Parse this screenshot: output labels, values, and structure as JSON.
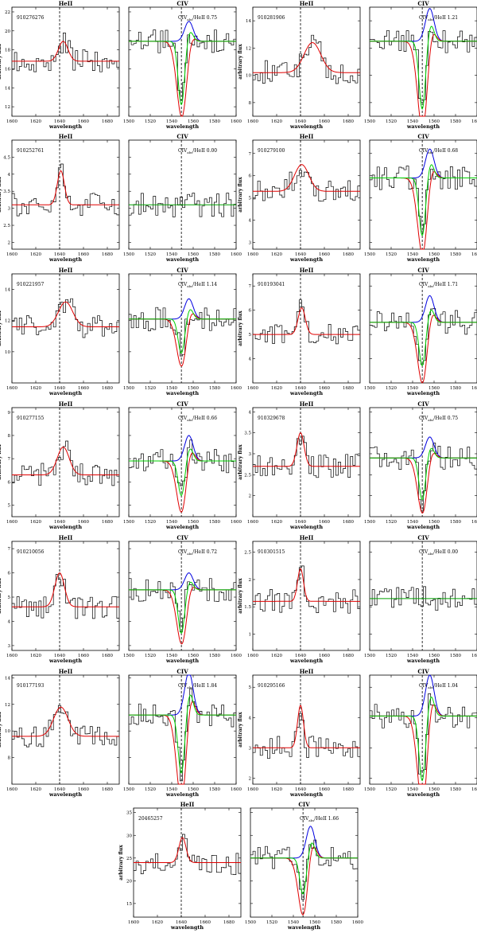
{
  "figure": {
    "ylabel": "arbitrary flux",
    "xlabel": "wavelength",
    "heii_title": "HeII",
    "civ_title": "CIV",
    "ratio_prefix": "CIV",
    "ratio_sub": "abs",
    "ratio_suffix": "/HeII",
    "colors": {
      "data": "#000000",
      "model": "#e00000",
      "emission": "#0000e0",
      "continuum": "#00a000",
      "absorption": "#00d000"
    }
  },
  "chart_data": [
    {
      "type": "line",
      "id": "910276276",
      "heii": {
        "xlim": [
          1600,
          1690
        ],
        "xticks": [
          1600,
          1620,
          1640,
          1660,
          1680
        ],
        "ylim": [
          11,
          22.5
        ],
        "yticks": [
          12,
          14,
          16,
          18,
          20,
          22
        ],
        "cont": 16.8,
        "peak": 18.9,
        "center": 1643,
        "sigma": 4
      },
      "civ": {
        "ratio": "0.75",
        "xlim": [
          1500,
          1600
        ],
        "xticks": [
          1500,
          1520,
          1540,
          1560,
          1580,
          1600
        ],
        "ylim": [
          11,
          22.5
        ],
        "cont": 18.9,
        "em_peak": 21.0,
        "abs_min": 12.2
      }
    },
    {
      "type": "line",
      "id": "910281906",
      "heii": {
        "xlim": [
          1600,
          1690
        ],
        "xticks": [
          1600,
          1620,
          1640,
          1660,
          1680
        ],
        "ylim": [
          7,
          15
        ],
        "yticks": [
          8,
          10,
          12,
          14
        ],
        "cont": 10.2,
        "peak": 12.4,
        "center": 1650,
        "sigma": 7
      },
      "civ": {
        "ratio": "1.21",
        "xlim": [
          1500,
          1600
        ],
        "xticks": [
          1500,
          1520,
          1540,
          1560,
          1580,
          1600
        ],
        "ylim": [
          7,
          15
        ],
        "cont": 12.5,
        "em_peak": 14.9,
        "abs_min": 7.5
      }
    },
    {
      "type": "line",
      "id": "910252761",
      "heii": {
        "xlim": [
          1600,
          1690
        ],
        "xticks": [
          1600,
          1620,
          1640,
          1660,
          1680
        ],
        "ylim": [
          1.8,
          5.0
        ],
        "yticks": [
          2.0,
          2.5,
          3.0,
          3.5,
          4.0,
          4.5
        ],
        "cont": 3.1,
        "peak": 4.1,
        "center": 1641,
        "sigma": 3
      },
      "civ": {
        "ratio": "0.00",
        "xlim": [
          1500,
          1600
        ],
        "xticks": [
          1500,
          1520,
          1540,
          1560,
          1580,
          1600
        ],
        "ylim": [
          1.8,
          5.0
        ],
        "cont": 3.1,
        "em_peak": 3.1,
        "abs_min": 3.1
      }
    },
    {
      "type": "line",
      "id": "910279100",
      "heii": {
        "xlim": [
          1600,
          1690
        ],
        "xticks": [
          1600,
          1620,
          1640,
          1660,
          1680
        ],
        "ylim": [
          2.7,
          7.6
        ],
        "yticks": [
          3,
          4,
          5,
          6,
          7
        ],
        "cont": 5.3,
        "peak": 6.5,
        "center": 1641,
        "sigma": 6
      },
      "civ": {
        "ratio": "0.68",
        "xlim": [
          1500,
          1600
        ],
        "xticks": [
          1500,
          1520,
          1540,
          1560,
          1580,
          1600
        ],
        "ylim": [
          2.7,
          7.6
        ],
        "cont": 5.9,
        "em_peak": 7.2,
        "abs_min": 3.3
      }
    },
    {
      "type": "line",
      "id": "910221957",
      "heii": {
        "xlim": [
          1600,
          1690
        ],
        "xticks": [
          1600,
          1620,
          1640,
          1660,
          1680
        ],
        "ylim": [
          8,
          15
        ],
        "yticks": [
          10,
          12,
          14
        ],
        "cont": 11.6,
        "peak": 13.2,
        "center": 1645,
        "sigma": 6
      },
      "civ": {
        "ratio": "1.14",
        "xlim": [
          1500,
          1600
        ],
        "xticks": [
          1500,
          1520,
          1540,
          1560,
          1580,
          1600
        ],
        "ylim": [
          8,
          15
        ],
        "cont": 12.1,
        "em_peak": 13.4,
        "abs_min": 9.9
      }
    },
    {
      "type": "line",
      "id": "910193041",
      "heii": {
        "xlim": [
          1600,
          1690
        ],
        "xticks": [
          1600,
          1620,
          1640,
          1660,
          1680
        ],
        "ylim": [
          3,
          7.5
        ],
        "yticks": [
          4,
          5,
          6,
          7
        ],
        "cont": 5.0,
        "peak": 6.1,
        "center": 1641,
        "sigma": 3
      },
      "civ": {
        "ratio": "1.71",
        "xlim": [
          1500,
          1600
        ],
        "xticks": [
          1500,
          1520,
          1540,
          1560,
          1580,
          1600
        ],
        "ylim": [
          3,
          7.5
        ],
        "cont": 5.5,
        "em_peak": 6.6,
        "abs_min": 3.7
      }
    },
    {
      "type": "line",
      "id": "910277155",
      "heii": {
        "xlim": [
          1600,
          1690
        ],
        "xticks": [
          1600,
          1620,
          1640,
          1660,
          1680
        ],
        "ylim": [
          4.5,
          9.2
        ],
        "yticks": [
          5,
          6,
          7,
          8,
          9
        ],
        "cont": 6.3,
        "peak": 7.5,
        "center": 1643,
        "sigma": 5
      },
      "civ": {
        "ratio": "0.66",
        "xlim": [
          1500,
          1600
        ],
        "xticks": [
          1500,
          1520,
          1540,
          1560,
          1580,
          1600
        ],
        "ylim": [
          4.5,
          9.2
        ],
        "cont": 6.9,
        "em_peak": 8.0,
        "abs_min": 5.4
      }
    },
    {
      "type": "line",
      "id": "910329678",
      "heii": {
        "xlim": [
          1600,
          1690
        ],
        "xticks": [
          1600,
          1620,
          1640,
          1660,
          1680
        ],
        "ylim": [
          1.5,
          4.1
        ],
        "yticks": [
          2.0,
          2.5,
          3.0,
          3.5,
          4.0
        ],
        "cont": 2.7,
        "peak": 3.5,
        "center": 1640,
        "sigma": 3
      },
      "civ": {
        "ratio": "0.75",
        "xlim": [
          1500,
          1600
        ],
        "xticks": [
          1500,
          1520,
          1540,
          1560,
          1580,
          1600
        ],
        "ylim": [
          1.5,
          4.1
        ],
        "cont": 2.9,
        "em_peak": 3.4,
        "abs_min": 1.9
      }
    },
    {
      "type": "line",
      "id": "910210056",
      "heii": {
        "xlim": [
          1600,
          1690
        ],
        "xticks": [
          1600,
          1620,
          1640,
          1660,
          1680
        ],
        "ylim": [
          2.8,
          7.3
        ],
        "yticks": [
          3,
          4,
          5,
          6,
          7
        ],
        "cont": 4.6,
        "peak": 6.0,
        "center": 1640,
        "sigma": 4
      },
      "civ": {
        "ratio": "0.72",
        "xlim": [
          1500,
          1600
        ],
        "xticks": [
          1500,
          1520,
          1540,
          1560,
          1580,
          1600
        ],
        "ylim": [
          2.8,
          7.3
        ],
        "cont": 5.3,
        "em_peak": 6.0,
        "abs_min": 3.5
      }
    },
    {
      "type": "line",
      "id": "910301515",
      "heii": {
        "xlim": [
          1600,
          1690
        ],
        "xticks": [
          1600,
          1620,
          1640,
          1660,
          1680
        ],
        "ylim": [
          0.7,
          2.7
        ],
        "yticks": [
          1.0,
          1.5,
          2.0,
          2.5
        ],
        "cont": 1.6,
        "peak": 2.2,
        "center": 1640,
        "sigma": 2.5
      },
      "civ": {
        "ratio": "0.00",
        "xlim": [
          1500,
          1600
        ],
        "xticks": [
          1500,
          1520,
          1540,
          1560,
          1580,
          1600
        ],
        "ylim": [
          0.7,
          2.7
        ],
        "cont": 1.65,
        "em_peak": 1.65,
        "abs_min": 1.65
      }
    },
    {
      "type": "line",
      "id": "910177193",
      "heii": {
        "xlim": [
          1600,
          1690
        ],
        "xticks": [
          1600,
          1620,
          1640,
          1660,
          1680
        ],
        "ylim": [
          6,
          14.2
        ],
        "yticks": [
          8,
          10,
          12,
          14
        ],
        "cont": 9.6,
        "peak": 11.8,
        "center": 1641,
        "sigma": 6
      },
      "civ": {
        "ratio": "1.84",
        "xlim": [
          1500,
          1600
        ],
        "xticks": [
          1500,
          1520,
          1540,
          1560,
          1580,
          1600
        ],
        "ylim": [
          6,
          14.2
        ],
        "cont": 11.2,
        "em_peak": 14.4,
        "abs_min": 6.8
      }
    },
    {
      "type": "line",
      "id": "910295166",
      "heii": {
        "xlim": [
          1600,
          1690
        ],
        "xticks": [
          1600,
          1620,
          1640,
          1660,
          1680
        ],
        "ylim": [
          1.8,
          5.4
        ],
        "yticks": [
          2,
          3,
          4,
          5
        ],
        "cont": 3.0,
        "peak": 4.4,
        "center": 1640,
        "sigma": 2.5
      },
      "civ": {
        "ratio": "1.04",
        "xlim": [
          1500,
          1600
        ],
        "xticks": [
          1500,
          1520,
          1540,
          1560,
          1580,
          1600
        ],
        "ylim": [
          1.8,
          5.4
        ],
        "cont": 4.05,
        "em_peak": 5.4,
        "abs_min": 1.9
      }
    },
    {
      "type": "line",
      "id": "20465257",
      "heii": {
        "xlim": [
          1600,
          1690
        ],
        "xticks": [
          1600,
          1620,
          1640,
          1660,
          1680
        ],
        "ylim": [
          12,
          36
        ],
        "yticks": [
          15,
          20,
          25,
          30,
          35
        ],
        "cont": 24,
        "peak": 29.5,
        "center": 1641,
        "sigma": 3
      },
      "civ": {
        "ratio": "1.66",
        "xlim": [
          1500,
          1600
        ],
        "xticks": [
          1500,
          1520,
          1540,
          1560,
          1580,
          1600
        ],
        "ylim": [
          12,
          36
        ],
        "cont": 25,
        "em_peak": 32,
        "abs_min": 17
      }
    }
  ]
}
